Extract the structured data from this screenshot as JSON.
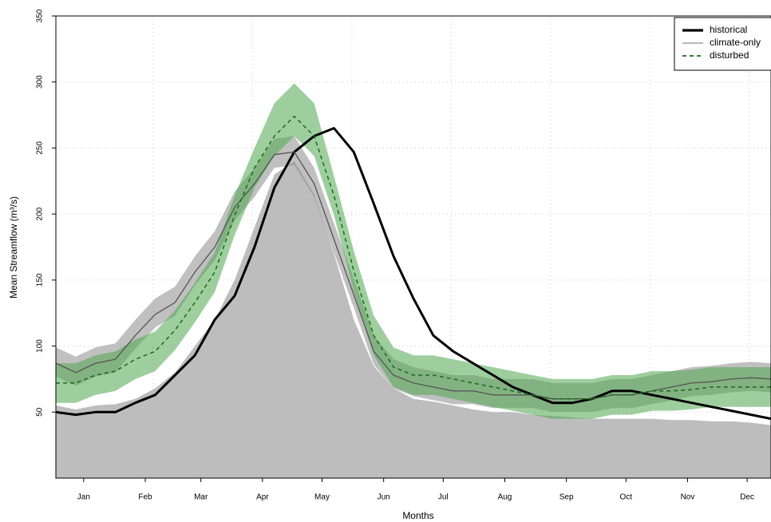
{
  "chart_data": {
    "type": "line",
    "xlabel": "Months",
    "ylabel": "Mean Streamflow (m³/s)",
    "x": [
      1,
      11,
      21,
      31,
      41,
      51,
      61,
      71,
      81,
      91,
      101,
      111,
      121,
      131,
      141,
      151,
      161,
      171,
      181,
      191,
      201,
      211,
      221,
      231,
      241,
      251,
      261,
      271,
      281,
      291,
      301,
      311,
      321,
      331,
      341,
      351,
      361
    ],
    "xlim": [
      1,
      361
    ],
    "xticks": [
      {
        "value": 15,
        "label": "Jan"
      },
      {
        "value": 46,
        "label": "Feb"
      },
      {
        "value": 74,
        "label": "Mar"
      },
      {
        "value": 105,
        "label": "Apr"
      },
      {
        "value": 135,
        "label": "May"
      },
      {
        "value": 166,
        "label": "Jun"
      },
      {
        "value": 196,
        "label": "Jul"
      },
      {
        "value": 227,
        "label": "Aug"
      },
      {
        "value": 258,
        "label": "Sep"
      },
      {
        "value": 288,
        "label": "Oct"
      },
      {
        "value": 319,
        "label": "Nov"
      },
      {
        "value": 349,
        "label": "Dec"
      }
    ],
    "xgrid": [
      50,
      100,
      150,
      200,
      250,
      300,
      350
    ],
    "ylim": [
      0,
      350
    ],
    "yticks": [
      50,
      100,
      150,
      200,
      250,
      300,
      350
    ],
    "grid": true,
    "legend": "top-right",
    "fill": {
      "color": "#bdbdbd",
      "values": [
        55,
        52,
        55,
        56,
        60,
        68,
        80,
        100,
        120,
        150,
        190,
        230,
        240,
        215,
        170,
        120,
        85,
        68,
        60,
        58,
        55,
        52,
        50,
        50,
        48,
        47,
        46,
        45,
        45,
        45,
        45,
        44,
        44,
        43,
        43,
        42,
        40
      ]
    },
    "series": [
      {
        "name": "historical",
        "color": "#000000",
        "width": 3,
        "dash": "none",
        "values": [
          50,
          48,
          50,
          50,
          57,
          63,
          78,
          93,
          120,
          138,
          175,
          220,
          247,
          259,
          265,
          247,
          208,
          168,
          136,
          108,
          96,
          87,
          78,
          69,
          63,
          57,
          57,
          60,
          66,
          66,
          63,
          60,
          57,
          54,
          51,
          48,
          45
        ]
      },
      {
        "name": "climate-only",
        "color": "#555555",
        "legend_color": "#a0a0a0",
        "width": 1.3,
        "dash": "none",
        "band_color": "#8c8c8c",
        "values": [
          87,
          80,
          87,
          90,
          108,
          124,
          133,
          156,
          175,
          205,
          223,
          245,
          247,
          223,
          181,
          139,
          96,
          78,
          72,
          69,
          66,
          66,
          63,
          63,
          63,
          60,
          60,
          60,
          63,
          63,
          66,
          69,
          72,
          73,
          75,
          76,
          75
        ],
        "lower": [
          77,
          70,
          77,
          80,
          98,
          114,
          123,
          146,
          165,
          195,
          213,
          235,
          237,
          213,
          171,
          129,
          86,
          68,
          62,
          59,
          56,
          56,
          53,
          53,
          53,
          50,
          50,
          50,
          53,
          53,
          56,
          59,
          62,
          63,
          65,
          66,
          65
        ],
        "upper": [
          99,
          92,
          99,
          102,
          120,
          136,
          145,
          168,
          187,
          217,
          235,
          257,
          259,
          235,
          193,
          151,
          108,
          90,
          84,
          81,
          78,
          78,
          75,
          75,
          75,
          72,
          72,
          72,
          75,
          75,
          78,
          81,
          84,
          85,
          87,
          88,
          87
        ]
      },
      {
        "name": "disturbed",
        "color": "#1a6b1a",
        "width": 1.5,
        "dash": "5 4",
        "band_color": "#4fa64f",
        "values": [
          72,
          72,
          78,
          81,
          90,
          96,
          112,
          133,
          156,
          199,
          235,
          259,
          274,
          259,
          214,
          157,
          108,
          84,
          78,
          78,
          75,
          72,
          69,
          66,
          63,
          60,
          60,
          60,
          63,
          63,
          66,
          66,
          67,
          69,
          69,
          69,
          69
        ],
        "lower": [
          57,
          57,
          63,
          66,
          75,
          81,
          97,
          118,
          141,
          184,
          220,
          244,
          259,
          244,
          199,
          142,
          93,
          69,
          63,
          63,
          60,
          57,
          54,
          51,
          48,
          45,
          45,
          45,
          48,
          48,
          51,
          51,
          52,
          54,
          54,
          54,
          54
        ],
        "upper": [
          87,
          87,
          93,
          96,
          105,
          111,
          127,
          148,
          171,
          214,
          250,
          284,
          299,
          284,
          229,
          172,
          123,
          99,
          93,
          93,
          90,
          87,
          84,
          81,
          78,
          75,
          75,
          75,
          78,
          78,
          81,
          81,
          82,
          84,
          84,
          84,
          84
        ]
      }
    ]
  }
}
